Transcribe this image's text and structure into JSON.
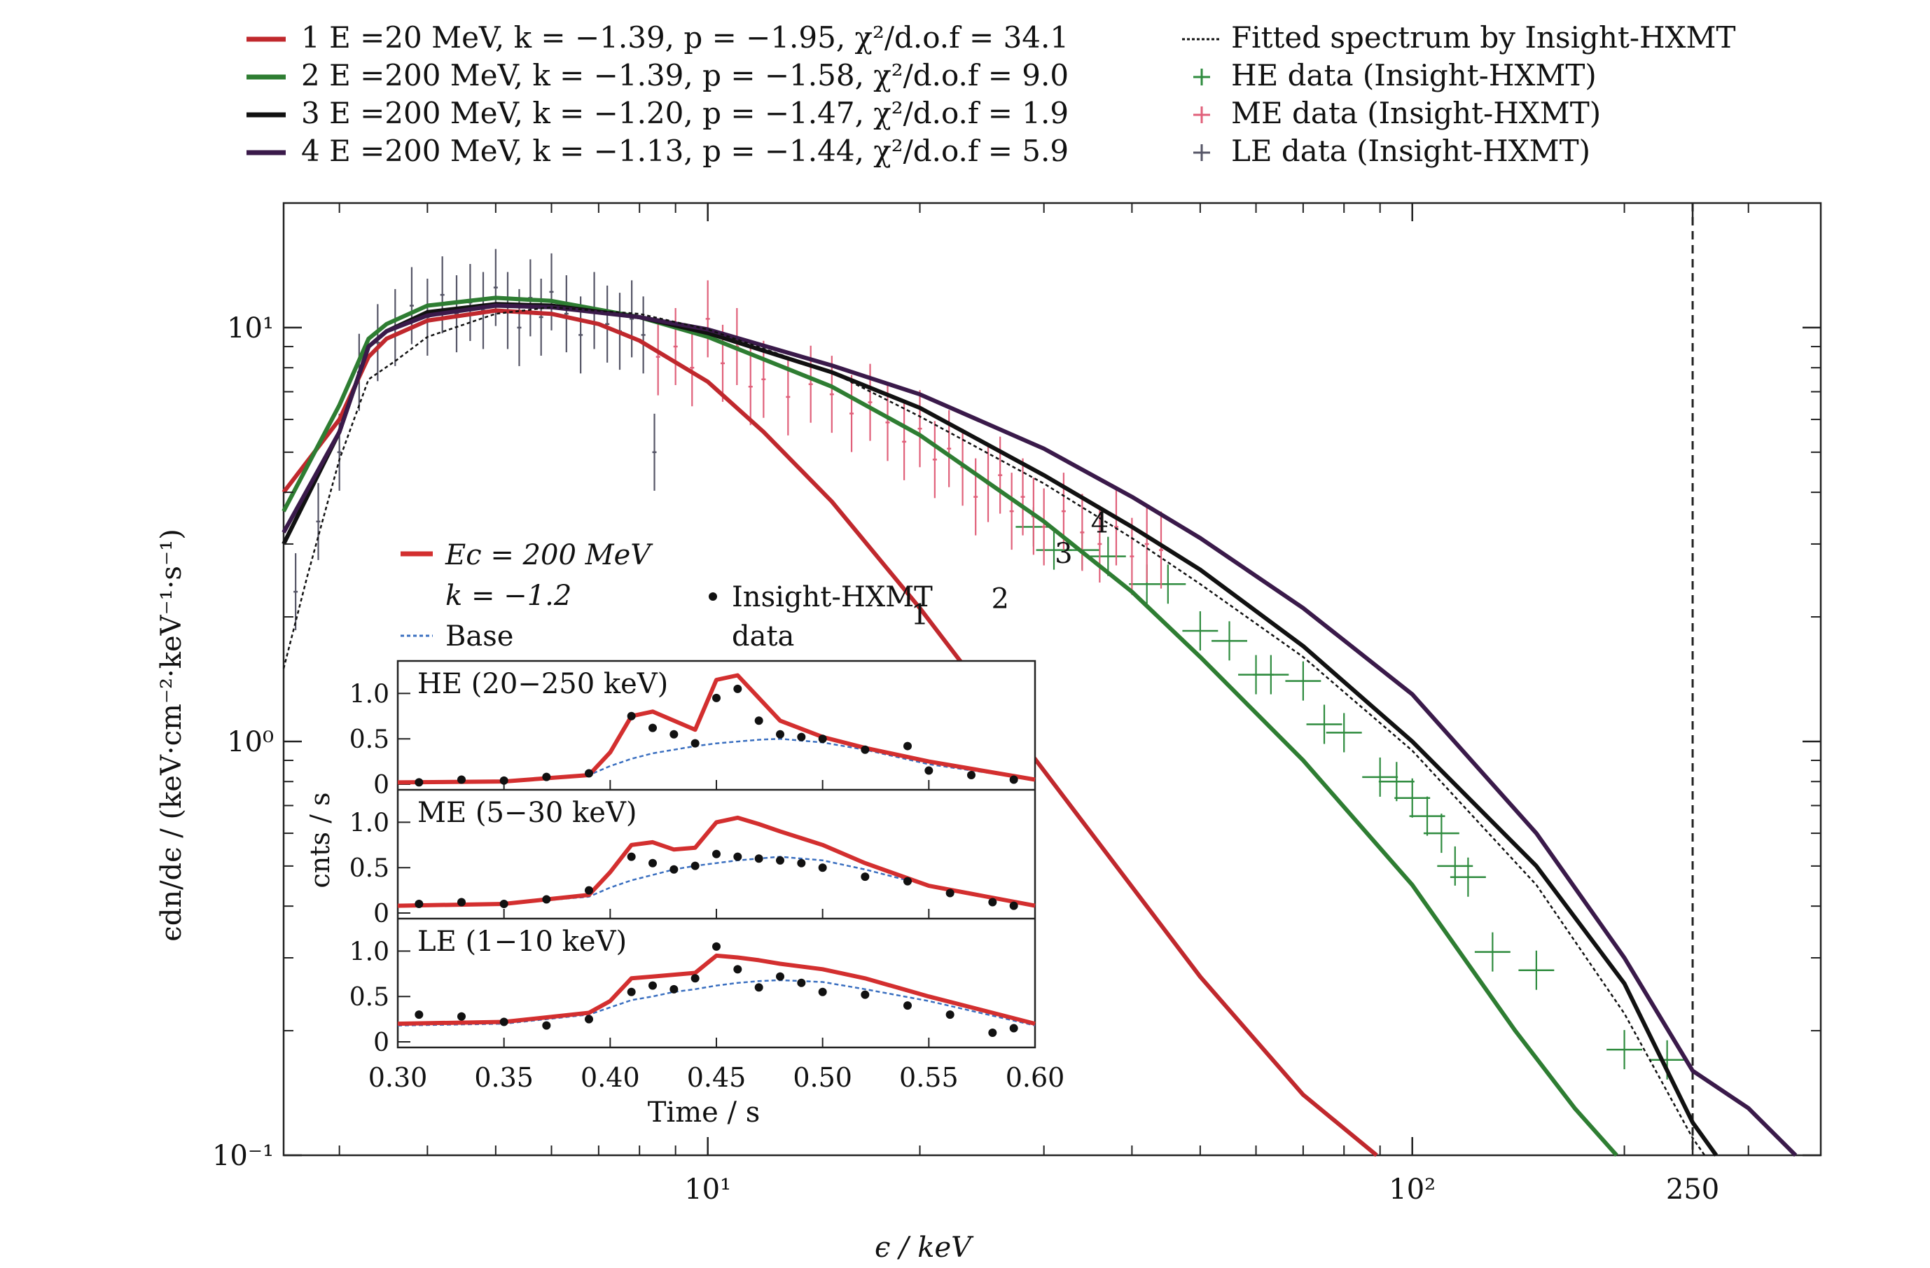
{
  "chart_data": [
    {
      "type": "line",
      "title": "",
      "xlabel": "ϵ / keV",
      "ylabel": "ϵdn/dϵ / (keV·cm⁻²·keV⁻¹·s⁻¹)",
      "xscale": "log",
      "yscale": "log",
      "xlim": [
        2.5,
        380
      ],
      "ylim": [
        0.1,
        20
      ],
      "x_ticks": [
        {
          "value": 10,
          "label": "10¹"
        },
        {
          "value": 100,
          "label": "10²"
        },
        {
          "value": 250,
          "label": "250"
        }
      ],
      "y_ticks": [
        {
          "value": 0.1,
          "label": "10⁻¹"
        },
        {
          "value": 1,
          "label": "10⁰"
        },
        {
          "value": 10,
          "label": "10¹"
        }
      ],
      "vline": {
        "x": 250,
        "style": "dashed"
      },
      "legend_position": "top, above plot",
      "legend": [
        {
          "text": "1 E =20 MeV, k = −1.39, p = −1.95, χ²/d.o.f = 34.1",
          "color": "#c0282d",
          "kind": "line"
        },
        {
          "text": "2 E =200 MeV, k = −1.39, p = −1.58, χ²/d.o.f = 9.0",
          "color": "#2e7d32",
          "kind": "line"
        },
        {
          "text": "3 E =200 MeV, k = −1.20, p = −1.47, χ²/d.o.f = 1.9",
          "color": "#111111",
          "kind": "line"
        },
        {
          "text": "4 E =200 MeV, k = −1.13, p = −1.44, χ²/d.o.f = 5.9",
          "color": "#3a1a4a",
          "kind": "line"
        },
        {
          "text": "Fitted spectrum by Insight-HXMT",
          "color": "#111111",
          "kind": "dotted"
        },
        {
          "text": "HE data (Insight-HXMT)",
          "color": "#2e8b3e",
          "kind": "cross"
        },
        {
          "text": "ME data (Insight-HXMT)",
          "color": "#e0607a",
          "kind": "cross"
        },
        {
          "text": "LE data (Insight-HXMT)",
          "color": "#555566",
          "kind": "cross"
        }
      ],
      "series": [
        {
          "name": "1",
          "color": "#c0282d",
          "style": "solid",
          "x": [
            2.5,
            3.0,
            3.3,
            3.5,
            4.0,
            5.0,
            6.0,
            7.0,
            8.0,
            10,
            12,
            15,
            20,
            30,
            50,
            70,
            89
          ],
          "y": [
            4.0,
            6.0,
            8.5,
            9.4,
            10.4,
            11.0,
            10.8,
            10.2,
            9.3,
            7.4,
            5.6,
            3.8,
            2.1,
            0.85,
            0.27,
            0.14,
            0.1
          ]
        },
        {
          "name": "2",
          "color": "#2e7d32",
          "style": "solid",
          "x": [
            2.5,
            3.0,
            3.3,
            3.5,
            4.0,
            5.0,
            6.0,
            8.0,
            10,
            15,
            20,
            30,
            40,
            50,
            70,
            100,
            140,
            170,
            195
          ],
          "y": [
            3.6,
            6.5,
            9.4,
            10.2,
            11.3,
            11.8,
            11.6,
            10.6,
            9.5,
            7.2,
            5.5,
            3.4,
            2.3,
            1.6,
            0.9,
            0.45,
            0.2,
            0.13,
            0.1
          ]
        },
        {
          "name": "3",
          "color": "#111111",
          "style": "solid",
          "x": [
            2.5,
            3.0,
            3.3,
            3.5,
            4.0,
            5.0,
            6.0,
            8.0,
            10,
            15,
            20,
            30,
            40,
            50,
            70,
            100,
            150,
            200,
            250,
            270
          ],
          "y": [
            3.0,
            5.6,
            9.0,
            9.8,
            10.9,
            11.4,
            11.3,
            10.6,
            9.7,
            7.8,
            6.4,
            4.4,
            3.3,
            2.6,
            1.7,
            1.0,
            0.5,
            0.26,
            0.12,
            0.1
          ]
        },
        {
          "name": "4",
          "color": "#3a1a4a",
          "style": "solid",
          "x": [
            2.5,
            3.0,
            3.3,
            3.5,
            4.0,
            5.0,
            6.0,
            8.0,
            10,
            15,
            20,
            30,
            40,
            50,
            70,
            100,
            150,
            200,
            250,
            300,
            350
          ],
          "y": [
            3.2,
            5.6,
            9.0,
            9.8,
            10.7,
            11.3,
            11.2,
            10.6,
            9.9,
            8.1,
            6.9,
            5.1,
            3.9,
            3.1,
            2.1,
            1.3,
            0.6,
            0.3,
            0.16,
            0.13,
            0.1
          ]
        },
        {
          "name": "Fitted spectrum by Insight-HXMT",
          "color": "#111111",
          "style": "dotted",
          "x": [
            2.5,
            2.7,
            3.0,
            3.3,
            3.6,
            4.0,
            5.0,
            6.0,
            8.0,
            10,
            15,
            20,
            30,
            40,
            50,
            70,
            100,
            150,
            200,
            250,
            260
          ],
          "y": [
            1.5,
            2.5,
            4.8,
            7.5,
            8.3,
            9.5,
            10.8,
            11.2,
            10.8,
            9.9,
            7.8,
            6.1,
            4.2,
            3.1,
            2.4,
            1.6,
            0.95,
            0.45,
            0.22,
            0.11,
            0.1
          ]
        }
      ],
      "scatter": [
        {
          "name": "HE data (Insight-HXMT)",
          "color": "#2e8b3e",
          "x": [
            29,
            31,
            34,
            37,
            42,
            45,
            50,
            55,
            60,
            63,
            70,
            75,
            80,
            90,
            95,
            100,
            105,
            110,
            115,
            120,
            130,
            150,
            200,
            230
          ],
          "y": [
            3.3,
            2.9,
            2.9,
            2.8,
            2.4,
            2.4,
            1.85,
            1.75,
            1.45,
            1.45,
            1.4,
            1.1,
            1.05,
            0.82,
            0.8,
            0.73,
            0.66,
            0.6,
            0.5,
            0.47,
            0.31,
            0.28,
            0.18,
            0.17
          ]
        },
        {
          "name": "ME data (Insight-HXMT)",
          "color": "#e0607a",
          "x": [
            8.5,
            9.0,
            9.5,
            10,
            10.5,
            11,
            11.5,
            12,
            13,
            14,
            15,
            16,
            17,
            18,
            19,
            20,
            21,
            22,
            23,
            24,
            25,
            26,
            27,
            28,
            29,
            30,
            32,
            34,
            36,
            38,
            40,
            42,
            44
          ],
          "y": [
            8.5,
            9.0,
            8.0,
            10.5,
            8.2,
            9.0,
            7.2,
            7.5,
            6.8,
            7.3,
            6.9,
            6.2,
            6.6,
            5.9,
            5.3,
            5.7,
            4.8,
            5.1,
            4.6,
            3.9,
            4.2,
            4.4,
            3.6,
            3.9,
            3.5,
            3.3,
            3.6,
            3.2,
            3.0,
            3.3,
            2.8,
            3.0,
            2.9
          ]
        },
        {
          "name": "LE data (Insight-HXMT)",
          "color": "#555566",
          "x": [
            2.6,
            2.8,
            3.0,
            3.2,
            3.4,
            3.6,
            3.8,
            4.0,
            4.2,
            4.4,
            4.6,
            4.8,
            5.0,
            5.2,
            5.4,
            5.6,
            5.8,
            6.0,
            6.3,
            6.6,
            6.9,
            7.2,
            7.5,
            7.8,
            8.1,
            8.4
          ],
          "y": [
            2.3,
            3.4,
            5.0,
            7.8,
            9.2,
            10.0,
            11.3,
            10.6,
            12.0,
            10.8,
            11.5,
            11.0,
            12.5,
            11.0,
            10.0,
            11.8,
            10.6,
            12.2,
            10.8,
            9.6,
            11.0,
            10.2,
            9.8,
            10.5,
            9.6,
            5.0
          ]
        }
      ],
      "annotations": [
        {
          "text": "1",
          "x": 20,
          "y": 1.92
        },
        {
          "text": "2",
          "x": 26,
          "y": 2.1
        },
        {
          "text": "3",
          "x": 32,
          "y": 2.7
        },
        {
          "text": "4",
          "x": 36,
          "y": 3.2
        }
      ]
    },
    {
      "type": "line",
      "title": "",
      "xlabel": "Time / s",
      "ylabel": "cnts / s",
      "xlim": [
        0.3,
        0.6
      ],
      "x_ticks": [
        "0.30",
        "0.35",
        "0.40",
        "0.45",
        "0.50",
        "0.55",
        "0.60"
      ],
      "y_ticks": [
        "0",
        "0.5",
        "1.0"
      ],
      "legend": {
        "model_label": "Ec = 200 MeV",
        "k_label": "k = −1.2",
        "base_label": "Base",
        "data_label_1": "Insight-HXMT",
        "data_label_2": "data",
        "model_color": "#d32f2f",
        "base_color": "#3a6fc0"
      },
      "panels": [
        {
          "label": "HE (20−250 keV)",
          "model_t": [
            0.3,
            0.35,
            0.39,
            0.4,
            0.41,
            0.42,
            0.43,
            0.44,
            0.45,
            0.46,
            0.47,
            0.48,
            0.5,
            0.52,
            0.55,
            0.6
          ],
          "model_y": [
            0.02,
            0.03,
            0.1,
            0.35,
            0.75,
            0.8,
            0.7,
            0.6,
            1.15,
            1.2,
            0.95,
            0.7,
            0.52,
            0.4,
            0.25,
            0.05
          ],
          "base_y": [
            0.02,
            0.04,
            0.1,
            0.2,
            0.28,
            0.34,
            0.38,
            0.42,
            0.45,
            0.47,
            0.49,
            0.5,
            0.46,
            0.38,
            0.22,
            0.05
          ],
          "data_t": [
            0.31,
            0.33,
            0.35,
            0.37,
            0.39,
            0.41,
            0.42,
            0.43,
            0.44,
            0.45,
            0.46,
            0.47,
            0.48,
            0.49,
            0.5,
            0.52,
            0.54,
            0.55,
            0.57,
            0.59
          ],
          "data_y": [
            0.02,
            0.05,
            0.04,
            0.08,
            0.12,
            0.75,
            0.62,
            0.55,
            0.45,
            0.95,
            1.05,
            0.7,
            0.55,
            0.52,
            0.5,
            0.38,
            0.42,
            0.15,
            0.1,
            0.05
          ]
        },
        {
          "label": "ME (5−30 keV)",
          "model_t": [
            0.3,
            0.35,
            0.39,
            0.4,
            0.41,
            0.42,
            0.43,
            0.44,
            0.45,
            0.46,
            0.47,
            0.48,
            0.5,
            0.52,
            0.55,
            0.6
          ],
          "model_y": [
            0.08,
            0.1,
            0.2,
            0.45,
            0.75,
            0.78,
            0.7,
            0.72,
            1.0,
            1.05,
            0.98,
            0.9,
            0.75,
            0.55,
            0.3,
            0.08
          ],
          "base_y": [
            0.08,
            0.1,
            0.18,
            0.28,
            0.36,
            0.42,
            0.48,
            0.52,
            0.55,
            0.58,
            0.6,
            0.62,
            0.58,
            0.48,
            0.3,
            0.08
          ],
          "data_t": [
            0.31,
            0.33,
            0.35,
            0.37,
            0.39,
            0.41,
            0.42,
            0.43,
            0.44,
            0.45,
            0.46,
            0.47,
            0.48,
            0.49,
            0.5,
            0.52,
            0.54,
            0.56,
            0.58,
            0.59
          ],
          "data_y": [
            0.1,
            0.12,
            0.1,
            0.15,
            0.25,
            0.62,
            0.55,
            0.48,
            0.52,
            0.65,
            0.62,
            0.6,
            0.58,
            0.55,
            0.5,
            0.4,
            0.35,
            0.22,
            0.12,
            0.08
          ]
        },
        {
          "label": "LE (1−10 keV)",
          "model_t": [
            0.3,
            0.35,
            0.39,
            0.4,
            0.41,
            0.42,
            0.43,
            0.44,
            0.45,
            0.46,
            0.47,
            0.48,
            0.5,
            0.52,
            0.55,
            0.6
          ],
          "model_y": [
            0.2,
            0.22,
            0.32,
            0.45,
            0.7,
            0.72,
            0.74,
            0.76,
            0.95,
            0.93,
            0.9,
            0.86,
            0.8,
            0.7,
            0.5,
            0.2
          ],
          "base_y": [
            0.18,
            0.2,
            0.3,
            0.38,
            0.46,
            0.5,
            0.55,
            0.58,
            0.62,
            0.65,
            0.67,
            0.68,
            0.66,
            0.58,
            0.45,
            0.18
          ],
          "data_t": [
            0.31,
            0.33,
            0.35,
            0.37,
            0.39,
            0.41,
            0.42,
            0.43,
            0.44,
            0.45,
            0.46,
            0.47,
            0.48,
            0.49,
            0.5,
            0.52,
            0.54,
            0.56,
            0.58,
            0.59
          ],
          "data_y": [
            0.3,
            0.28,
            0.22,
            0.18,
            0.25,
            0.55,
            0.62,
            0.58,
            0.7,
            1.05,
            0.8,
            0.6,
            0.72,
            0.65,
            0.55,
            0.52,
            0.4,
            0.3,
            0.1,
            0.15
          ]
        }
      ]
    }
  ]
}
